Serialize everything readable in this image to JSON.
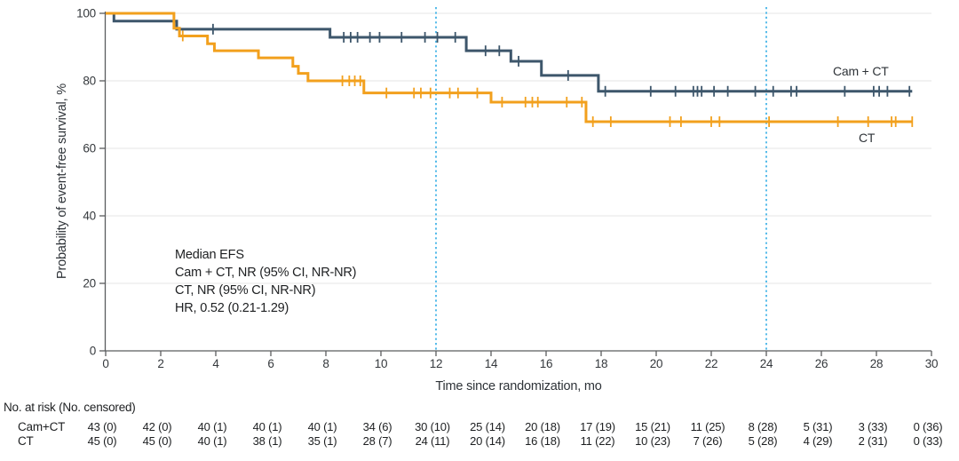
{
  "figure": {
    "y_axis_title": "Probability of event-free survival, %",
    "x_axis_title": "Time since randomization, mo",
    "annotation": {
      "line1": "Median EFS",
      "line2": "Cam + CT, NR (95% CI, NR-NR)",
      "line3": "CT, NR (95% CI, NR-NR)",
      "line4": "HR, 0.52 (0.21-1.29)"
    }
  },
  "chart_data": {
    "type": "line",
    "subtype": "kaplan-meier-step",
    "xlabel": "Time since randomization, mo",
    "ylabel": "Probability of event-free survival, %",
    "xlim": [
      0,
      30
    ],
    "ylim": [
      0,
      100
    ],
    "x_ticks": [
      0,
      2,
      4,
      6,
      8,
      10,
      12,
      14,
      16,
      18,
      20,
      22,
      24,
      26,
      28,
      30
    ],
    "y_ticks": [
      0,
      20,
      40,
      60,
      80,
      100
    ],
    "grid": "horizontal",
    "grid_color": "#e9e9e9",
    "axis_color": "#5a5c5e",
    "tick_text_color": "#35393d",
    "reference_lines_x": [
      12,
      24
    ],
    "reference_line_color": "#45b5e8",
    "legend_position": "inline-right",
    "series": [
      {
        "name": "Cam + CT",
        "color": "#3d566b",
        "steps": [
          [
            0,
            100
          ],
          [
            0.3,
            97.7
          ],
          [
            2.58,
            95.3
          ],
          [
            8.15,
            92.9
          ],
          [
            13.1,
            88.9
          ],
          [
            14.72,
            85.8
          ],
          [
            15.83,
            81.6
          ],
          [
            17.9,
            76.9
          ]
        ],
        "end_x": 29.3,
        "censor_marks": [
          [
            3.9,
            95.3
          ],
          [
            8.65,
            92.9
          ],
          [
            8.9,
            92.9
          ],
          [
            9.15,
            92.9
          ],
          [
            9.6,
            92.9
          ],
          [
            9.95,
            92.9
          ],
          [
            10.75,
            92.9
          ],
          [
            11.6,
            92.9
          ],
          [
            12.05,
            92.9
          ],
          [
            12.7,
            92.9
          ],
          [
            13.8,
            88.9
          ],
          [
            14.3,
            88.9
          ],
          [
            15.0,
            85.8
          ],
          [
            16.8,
            81.6
          ],
          [
            18.15,
            76.9
          ],
          [
            19.8,
            76.9
          ],
          [
            20.7,
            76.9
          ],
          [
            21.35,
            76.9
          ],
          [
            21.5,
            76.9
          ],
          [
            21.65,
            76.9
          ],
          [
            22.1,
            76.9
          ],
          [
            22.6,
            76.9
          ],
          [
            23.6,
            76.9
          ],
          [
            24.25,
            76.9
          ],
          [
            24.9,
            76.9
          ],
          [
            25.1,
            76.9
          ],
          [
            26.85,
            76.9
          ],
          [
            27.9,
            76.9
          ],
          [
            28.1,
            76.9
          ],
          [
            28.4,
            76.9
          ],
          [
            29.2,
            76.9
          ]
        ]
      },
      {
        "name": "CT",
        "color": "#f2a01d",
        "steps": [
          [
            0,
            100
          ],
          [
            2.48,
            95.6
          ],
          [
            2.68,
            93.3
          ],
          [
            3.7,
            91.0
          ],
          [
            3.95,
            88.9
          ],
          [
            5.55,
            86.8
          ],
          [
            6.8,
            84.3
          ],
          [
            7.0,
            82.2
          ],
          [
            7.35,
            80.0
          ],
          [
            9.38,
            76.4
          ],
          [
            14.0,
            73.7
          ],
          [
            17.45,
            67.9
          ]
        ],
        "end_x": 29.3,
        "censor_marks": [
          [
            2.8,
            93.3
          ],
          [
            8.6,
            80.0
          ],
          [
            8.85,
            80.0
          ],
          [
            9.05,
            80.0
          ],
          [
            9.25,
            80.0
          ],
          [
            10.2,
            76.4
          ],
          [
            11.2,
            76.4
          ],
          [
            11.45,
            76.4
          ],
          [
            11.8,
            76.4
          ],
          [
            12.5,
            76.4
          ],
          [
            12.8,
            76.4
          ],
          [
            13.5,
            76.4
          ],
          [
            14.4,
            73.7
          ],
          [
            15.25,
            73.7
          ],
          [
            15.5,
            73.7
          ],
          [
            15.7,
            73.7
          ],
          [
            16.75,
            73.7
          ],
          [
            17.3,
            73.7
          ],
          [
            17.7,
            67.9
          ],
          [
            18.35,
            67.9
          ],
          [
            20.5,
            67.9
          ],
          [
            20.9,
            67.9
          ],
          [
            22.0,
            67.9
          ],
          [
            22.3,
            67.9
          ],
          [
            24.1,
            67.9
          ],
          [
            26.6,
            67.9
          ],
          [
            27.7,
            67.9
          ],
          [
            28.55,
            67.9
          ],
          [
            28.7,
            67.9
          ],
          [
            29.3,
            67.9
          ]
        ]
      }
    ],
    "annotation_lines": [
      "Median EFS",
      "Cam + CT, NR (95% CI, NR-NR)",
      "CT, NR (95% CI, NR-NR)",
      "HR, 0.52 (0.21-1.29)"
    ],
    "risk_table": {
      "header": "No. at risk (No. censored)",
      "time_points": [
        0,
        2,
        4,
        6,
        8,
        10,
        12,
        14,
        16,
        18,
        20,
        22,
        24,
        26,
        28,
        30
      ],
      "rows": [
        {
          "label": "Cam+CT",
          "values": [
            "43 (0)",
            "42 (0)",
            "40 (1)",
            "40 (1)",
            "40 (1)",
            "34 (6)",
            "30 (10)",
            "25 (14)",
            "20 (18)",
            "17 (19)",
            "15 (21)",
            "11 (25)",
            "8 (28)",
            "5 (31)",
            "3 (33)",
            "0 (36)"
          ]
        },
        {
          "label": "CT",
          "values": [
            "45 (0)",
            "45 (0)",
            "40 (1)",
            "38 (1)",
            "35 (1)",
            "28 (7)",
            "24 (11)",
            "20 (14)",
            "16 (18)",
            "11 (22)",
            "10 (23)",
            "7 (26)",
            "5 (28)",
            "4 (29)",
            "2 (31)",
            "0 (33)"
          ]
        }
      ]
    }
  }
}
